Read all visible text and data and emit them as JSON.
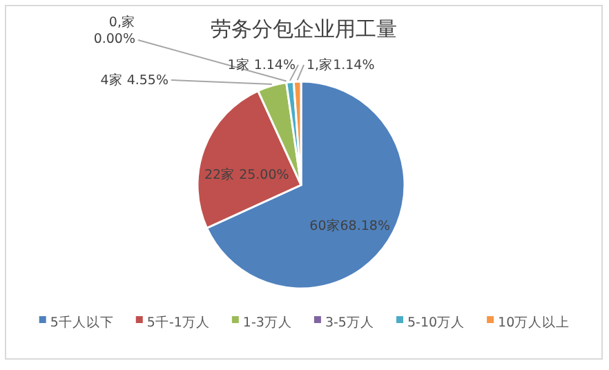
{
  "chart_data": {
    "type": "pie",
    "title": "劳务分包企业用工量",
    "categories": [
      "5千人以下",
      "5千-1万人",
      "1-3万人",
      "3-5万人",
      "5-10万人",
      "10万人以上"
    ],
    "values": [
      60,
      22,
      4,
      0,
      1,
      1
    ],
    "colors": [
      "#4f81bd",
      "#c0504d",
      "#9bbb59",
      "#8064a2",
      "#4bacc6",
      "#f79646"
    ],
    "value_labels": [
      "60家68.18%",
      "22家 25.00%",
      "4家 4.55%",
      "0,家 0.00%",
      "1家 1.14%",
      "1,家1.14%"
    ],
    "legend": "bottom"
  }
}
